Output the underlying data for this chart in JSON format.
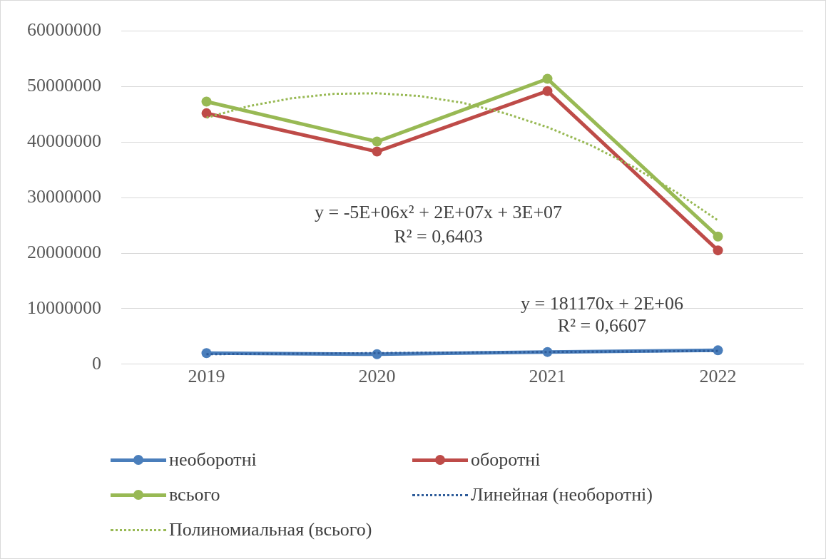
{
  "chart_data": {
    "type": "line",
    "xlim": [
      2018.5,
      2022.5
    ],
    "xticks": [
      2019,
      2020,
      2021,
      2022
    ],
    "ylim": [
      0,
      60000000
    ],
    "yticks": [
      0,
      10000000,
      20000000,
      30000000,
      40000000,
      50000000,
      60000000
    ],
    "grid": "y",
    "legend": "bottom",
    "series": [
      {
        "name": "необоротні",
        "color": "#4a7ebb",
        "marker": "circle",
        "line_style": "solid",
        "x": [
          2019,
          2020,
          2021,
          2022
        ],
        "values": [
          2000000,
          1800000,
          2200000,
          2500000
        ]
      },
      {
        "name": "оборотні",
        "color": "#be4b48",
        "marker": "circle",
        "line_style": "solid",
        "x": [
          2019,
          2020,
          2021,
          2022
        ],
        "values": [
          45200000,
          38300000,
          49200000,
          20500000
        ]
      },
      {
        "name": "всього",
        "color": "#98b954",
        "marker": "circle",
        "line_style": "solid",
        "x": [
          2019,
          2020,
          2021,
          2022
        ],
        "values": [
          47300000,
          40100000,
          51400000,
          23000000
        ]
      },
      {
        "name": "Линейная (необоротні)",
        "color": "#2e5c9a",
        "marker": "none",
        "line_style": "dotted",
        "x": [
          2019,
          2022
        ],
        "values": [
          1800000,
          2400000
        ]
      },
      {
        "name": "Полиномиальная (всього)",
        "color": "#98b954",
        "marker": "none",
        "line_style": "dotted",
        "x": [
          2019,
          2019.25,
          2019.5,
          2019.75,
          2020,
          2020.25,
          2020.5,
          2020.75,
          2021,
          2021.25,
          2021.5,
          2021.75,
          2022
        ],
        "values": [
          44400000,
          46500000,
          47900000,
          48700000,
          48800000,
          48300000,
          47100000,
          45200000,
          42700000,
          39500000,
          35600000,
          31100000,
          25900000
        ]
      }
    ],
    "annotations": [
      "y = -5E+06x² + 2E+07x + 3E+07",
      "R² = 0,6403",
      "y = 181170x + 2E+06",
      "R² = 0,6607"
    ]
  }
}
